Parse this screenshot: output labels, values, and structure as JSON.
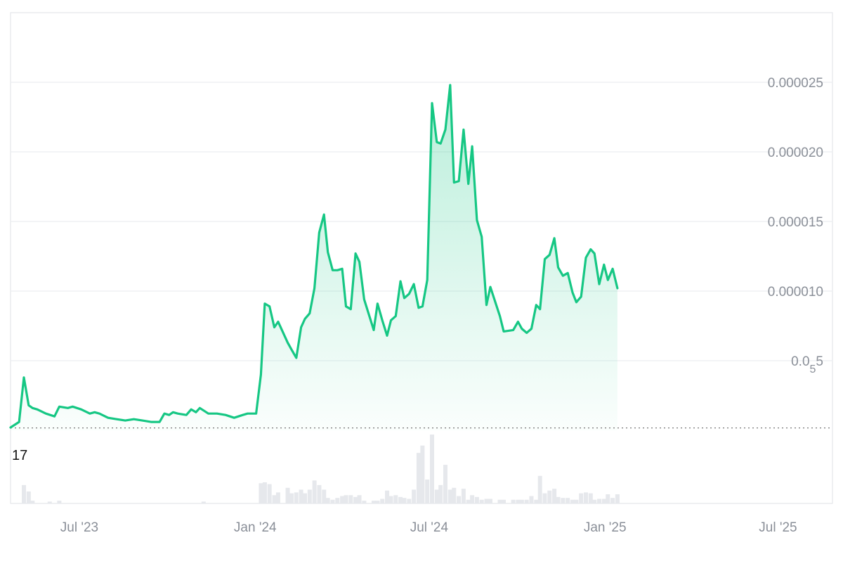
{
  "chart_data": {
    "type": "area",
    "title": "",
    "xlabel": "",
    "ylabel": "",
    "x_range": [
      "2023-04-20",
      "2025-08-27"
    ],
    "ylim": [
      0,
      3e-05
    ],
    "grid": true,
    "colors": {
      "line": "#16c784",
      "volume": "#e6e8ec",
      "grid": "#eceef1",
      "axis_text": "#8a8f98"
    },
    "y_ticks": [
      {
        "value": 2.5e-05,
        "label": "0.000025"
      },
      {
        "value": 2e-05,
        "label": "0.000020"
      },
      {
        "value": 1.5e-05,
        "label": "0.000015"
      },
      {
        "value": 1e-05,
        "label": "0.000010"
      },
      {
        "value": 5e-06,
        "label_main": "0.0",
        "label_sub": "5",
        "label_tail": "5"
      }
    ],
    "x_ticks": [
      {
        "date": "2023-07-01",
        "label": "Jul '23"
      },
      {
        "date": "2024-01-01",
        "label": "Jan '24"
      },
      {
        "date": "2024-07-01",
        "label": "Jul '24"
      },
      {
        "date": "2025-01-01",
        "label": "Jan '25"
      },
      {
        "date": "2025-07-01",
        "label": "Jul '25"
      }
    ],
    "start_label": "17",
    "baseline_value": 1.7e-07,
    "series": [
      {
        "values": [
          [
            "2023-04-20",
            2e-07
          ],
          [
            "2023-04-29",
            6e-07
          ],
          [
            "2023-05-04",
            3.8e-06
          ],
          [
            "2023-05-09",
            1.8e-06
          ],
          [
            "2023-05-13",
            1.6e-06
          ],
          [
            "2023-05-18",
            1.5e-06
          ],
          [
            "2023-05-27",
            1.2e-06
          ],
          [
            "2023-06-05",
            1e-06
          ],
          [
            "2023-06-10",
            1.7e-06
          ],
          [
            "2023-06-19",
            1.6e-06
          ],
          [
            "2023-06-24",
            1.7e-06
          ],
          [
            "2023-07-03",
            1.5e-06
          ],
          [
            "2023-07-12",
            1.2e-06
          ],
          [
            "2023-07-17",
            1.3e-06
          ],
          [
            "2023-07-22",
            1.2e-06
          ],
          [
            "2023-07-31",
            9e-07
          ],
          [
            "2023-08-09",
            8e-07
          ],
          [
            "2023-08-18",
            7e-07
          ],
          [
            "2023-08-27",
            8e-07
          ],
          [
            "2023-09-05",
            7e-07
          ],
          [
            "2023-09-14",
            6e-07
          ],
          [
            "2023-09-23",
            6e-07
          ],
          [
            "2023-09-28",
            1.2e-06
          ],
          [
            "2023-10-03",
            1.1e-06
          ],
          [
            "2023-10-07",
            1.3e-06
          ],
          [
            "2023-10-12",
            1.2e-06
          ],
          [
            "2023-10-21",
            1.1e-06
          ],
          [
            "2023-10-26",
            1.5e-06
          ],
          [
            "2023-10-31",
            1.3e-06
          ],
          [
            "2023-11-04",
            1.6e-06
          ],
          [
            "2023-11-13",
            1.2e-06
          ],
          [
            "2023-11-22",
            1.2e-06
          ],
          [
            "2023-12-01",
            1.1e-06
          ],
          [
            "2023-12-10",
            9e-07
          ],
          [
            "2023-12-19",
            1.1e-06
          ],
          [
            "2023-12-24",
            1.2e-06
          ],
          [
            "2024-01-02",
            1.2e-06
          ],
          [
            "2024-01-07",
            4e-06
          ],
          [
            "2024-01-11",
            9.1e-06
          ],
          [
            "2024-01-16",
            8.9e-06
          ],
          [
            "2024-01-21",
            7.4e-06
          ],
          [
            "2024-01-25",
            7.8e-06
          ],
          [
            "2024-02-04",
            6.3e-06
          ],
          [
            "2024-02-08",
            5.8e-06
          ],
          [
            "2024-02-13",
            5.2e-06
          ],
          [
            "2024-02-18",
            7.4e-06
          ],
          [
            "2024-02-22",
            8e-06
          ],
          [
            "2024-02-27",
            8.4e-06
          ],
          [
            "2024-03-03",
            1.02e-05
          ],
          [
            "2024-03-08",
            1.42e-05
          ],
          [
            "2024-03-13",
            1.55e-05
          ],
          [
            "2024-03-17",
            1.28e-05
          ],
          [
            "2024-03-22",
            1.15e-05
          ],
          [
            "2024-03-27",
            1.15e-05
          ],
          [
            "2024-04-01",
            1.16e-05
          ],
          [
            "2024-04-05",
            8.9e-06
          ],
          [
            "2024-04-10",
            8.7e-06
          ],
          [
            "2024-04-15",
            1.27e-05
          ],
          [
            "2024-04-19",
            1.21e-05
          ],
          [
            "2024-04-24",
            9.4e-06
          ],
          [
            "2024-05-04",
            7.2e-06
          ],
          [
            "2024-05-08",
            9.1e-06
          ],
          [
            "2024-05-13",
            7.9e-06
          ],
          [
            "2024-05-18",
            6.8e-06
          ],
          [
            "2024-05-22",
            7.9e-06
          ],
          [
            "2024-05-27",
            8.2e-06
          ],
          [
            "2024-06-01",
            1.07e-05
          ],
          [
            "2024-06-05",
            9.5e-06
          ],
          [
            "2024-06-10",
            9.8e-06
          ],
          [
            "2024-06-15",
            1.05e-05
          ],
          [
            "2024-06-20",
            8.8e-06
          ],
          [
            "2024-06-24",
            8.9e-06
          ],
          [
            "2024-06-29",
            1.08e-05
          ],
          [
            "2024-07-04",
            2.35e-05
          ],
          [
            "2024-07-09",
            2.07e-05
          ],
          [
            "2024-07-13",
            2.06e-05
          ],
          [
            "2024-07-18",
            2.16e-05
          ],
          [
            "2024-07-23",
            2.48e-05
          ],
          [
            "2024-07-27",
            1.78e-05
          ],
          [
            "2024-08-01",
            1.79e-05
          ],
          [
            "2024-08-06",
            2.16e-05
          ],
          [
            "2024-08-11",
            1.77e-05
          ],
          [
            "2024-08-15",
            2.04e-05
          ],
          [
            "2024-08-20",
            1.51e-05
          ],
          [
            "2024-08-25",
            1.39e-05
          ],
          [
            "2024-08-30",
            9e-06
          ],
          [
            "2024-09-03",
            1.03e-05
          ],
          [
            "2024-09-13",
            8.2e-06
          ],
          [
            "2024-09-17",
            7.1e-06
          ],
          [
            "2024-09-27",
            7.2e-06
          ],
          [
            "2024-10-02",
            7.8e-06
          ],
          [
            "2024-10-06",
            7.3e-06
          ],
          [
            "2024-10-11",
            7e-06
          ],
          [
            "2024-10-16",
            7.3e-06
          ],
          [
            "2024-10-21",
            9e-06
          ],
          [
            "2024-10-25",
            8.7e-06
          ],
          [
            "2024-10-30",
            1.23e-05
          ],
          [
            "2024-11-04",
            1.26e-05
          ],
          [
            "2024-11-09",
            1.38e-05
          ],
          [
            "2024-11-13",
            1.17e-05
          ],
          [
            "2024-11-18",
            1.11e-05
          ],
          [
            "2024-11-23",
            1.13e-05
          ],
          [
            "2024-11-28",
            9.9e-06
          ],
          [
            "2024-12-02",
            9.2e-06
          ],
          [
            "2024-12-07",
            9.6e-06
          ],
          [
            "2024-12-12",
            1.24e-05
          ],
          [
            "2024-12-17",
            1.3e-05
          ],
          [
            "2024-12-21",
            1.27e-05
          ],
          [
            "2024-12-26",
            1.05e-05
          ],
          [
            "2024-12-31",
            1.19e-05
          ],
          [
            "2025-01-04",
            1.08e-05
          ],
          [
            "2025-01-09",
            1.16e-05
          ],
          [
            "2025-01-14",
            1.02e-05
          ]
        ]
      }
    ],
    "volume": [
      [
        "2023-05-04",
        0.2
      ],
      [
        "2023-05-09",
        0.13
      ],
      [
        "2023-05-13",
        0.03
      ],
      [
        "2023-05-31",
        0.02
      ],
      [
        "2023-06-10",
        0.03
      ],
      [
        "2023-11-08",
        0.02
      ],
      [
        "2024-01-07",
        0.22
      ],
      [
        "2024-01-11",
        0.23
      ],
      [
        "2024-01-16",
        0.21
      ],
      [
        "2024-01-21",
        0.09
      ],
      [
        "2024-01-25",
        0.12
      ],
      [
        "2024-02-04",
        0.17
      ],
      [
        "2024-02-08",
        0.11
      ],
      [
        "2024-02-13",
        0.12
      ],
      [
        "2024-02-18",
        0.15
      ],
      [
        "2024-02-22",
        0.11
      ],
      [
        "2024-02-27",
        0.15
      ],
      [
        "2024-03-03",
        0.25
      ],
      [
        "2024-03-08",
        0.2
      ],
      [
        "2024-03-13",
        0.15
      ],
      [
        "2024-03-17",
        0.06
      ],
      [
        "2024-03-22",
        0.04
      ],
      [
        "2024-03-27",
        0.06
      ],
      [
        "2024-04-01",
        0.08
      ],
      [
        "2024-04-05",
        0.09
      ],
      [
        "2024-04-10",
        0.09
      ],
      [
        "2024-04-15",
        0.07
      ],
      [
        "2024-04-19",
        0.09
      ],
      [
        "2024-04-24",
        0.03
      ],
      [
        "2024-05-04",
        0.03
      ],
      [
        "2024-05-08",
        0.03
      ],
      [
        "2024-05-13",
        0.05
      ],
      [
        "2024-05-18",
        0.14
      ],
      [
        "2024-05-22",
        0.08
      ],
      [
        "2024-05-27",
        0.09
      ],
      [
        "2024-06-01",
        0.07
      ],
      [
        "2024-06-05",
        0.06
      ],
      [
        "2024-06-10",
        0.05
      ],
      [
        "2024-06-15",
        0.15
      ],
      [
        "2024-06-20",
        0.55
      ],
      [
        "2024-06-24",
        0.63
      ],
      [
        "2024-06-29",
        0.26
      ],
      [
        "2024-07-04",
        0.75
      ],
      [
        "2024-07-09",
        0.15
      ],
      [
        "2024-07-13",
        0.2
      ],
      [
        "2024-07-18",
        0.42
      ],
      [
        "2024-07-23",
        0.15
      ],
      [
        "2024-07-27",
        0.17
      ],
      [
        "2024-08-01",
        0.08
      ],
      [
        "2024-08-06",
        0.16
      ],
      [
        "2024-08-11",
        0.04
      ],
      [
        "2024-08-15",
        0.09
      ],
      [
        "2024-08-20",
        0.07
      ],
      [
        "2024-08-25",
        0.04
      ],
      [
        "2024-08-30",
        0.05
      ],
      [
        "2024-09-03",
        0.05
      ],
      [
        "2024-09-13",
        0.04
      ],
      [
        "2024-09-17",
        0.04
      ],
      [
        "2024-09-27",
        0.04
      ],
      [
        "2024-10-02",
        0.04
      ],
      [
        "2024-10-06",
        0.04
      ],
      [
        "2024-10-11",
        0.04
      ],
      [
        "2024-10-16",
        0.08
      ],
      [
        "2024-10-21",
        0.04
      ],
      [
        "2024-10-25",
        0.3
      ],
      [
        "2024-10-30",
        0.11
      ],
      [
        "2024-11-04",
        0.14
      ],
      [
        "2024-11-09",
        0.16
      ],
      [
        "2024-11-13",
        0.07
      ],
      [
        "2024-11-18",
        0.06
      ],
      [
        "2024-11-23",
        0.06
      ],
      [
        "2024-11-28",
        0.04
      ],
      [
        "2024-12-02",
        0.04
      ],
      [
        "2024-12-07",
        0.11
      ],
      [
        "2024-12-12",
        0.12
      ],
      [
        "2024-12-17",
        0.11
      ],
      [
        "2024-12-21",
        0.04
      ],
      [
        "2024-12-26",
        0.05
      ],
      [
        "2024-12-31",
        0.05
      ],
      [
        "2025-01-04",
        0.1
      ],
      [
        "2025-01-09",
        0.06
      ],
      [
        "2025-01-14",
        0.1
      ]
    ]
  }
}
